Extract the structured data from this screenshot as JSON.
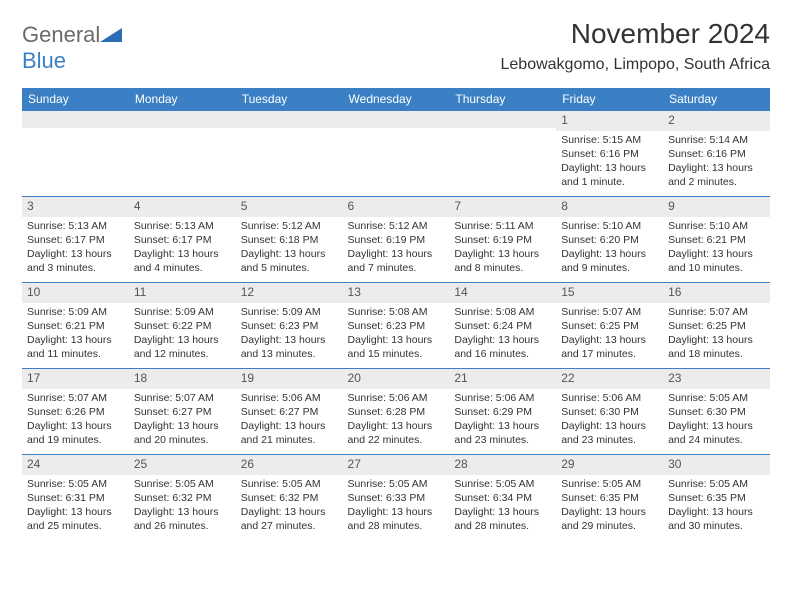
{
  "logo": {
    "general": "General",
    "blue": "Blue"
  },
  "title": "November 2024",
  "location": "Lebowakgomo, Limpopo, South Africa",
  "colors": {
    "header_bg": "#3b7fc4",
    "header_fg": "#ffffff",
    "daynum_bg": "#ececec",
    "text": "#333333"
  },
  "weekdays": [
    "Sunday",
    "Monday",
    "Tuesday",
    "Wednesday",
    "Thursday",
    "Friday",
    "Saturday"
  ],
  "weeks": [
    [
      {
        "n": "",
        "sr": "",
        "ss": "",
        "dl": ""
      },
      {
        "n": "",
        "sr": "",
        "ss": "",
        "dl": ""
      },
      {
        "n": "",
        "sr": "",
        "ss": "",
        "dl": ""
      },
      {
        "n": "",
        "sr": "",
        "ss": "",
        "dl": ""
      },
      {
        "n": "",
        "sr": "",
        "ss": "",
        "dl": ""
      },
      {
        "n": "1",
        "sr": "Sunrise: 5:15 AM",
        "ss": "Sunset: 6:16 PM",
        "dl": "Daylight: 13 hours and 1 minute."
      },
      {
        "n": "2",
        "sr": "Sunrise: 5:14 AM",
        "ss": "Sunset: 6:16 PM",
        "dl": "Daylight: 13 hours and 2 minutes."
      }
    ],
    [
      {
        "n": "3",
        "sr": "Sunrise: 5:13 AM",
        "ss": "Sunset: 6:17 PM",
        "dl": "Daylight: 13 hours and 3 minutes."
      },
      {
        "n": "4",
        "sr": "Sunrise: 5:13 AM",
        "ss": "Sunset: 6:17 PM",
        "dl": "Daylight: 13 hours and 4 minutes."
      },
      {
        "n": "5",
        "sr": "Sunrise: 5:12 AM",
        "ss": "Sunset: 6:18 PM",
        "dl": "Daylight: 13 hours and 5 minutes."
      },
      {
        "n": "6",
        "sr": "Sunrise: 5:12 AM",
        "ss": "Sunset: 6:19 PM",
        "dl": "Daylight: 13 hours and 7 minutes."
      },
      {
        "n": "7",
        "sr": "Sunrise: 5:11 AM",
        "ss": "Sunset: 6:19 PM",
        "dl": "Daylight: 13 hours and 8 minutes."
      },
      {
        "n": "8",
        "sr": "Sunrise: 5:10 AM",
        "ss": "Sunset: 6:20 PM",
        "dl": "Daylight: 13 hours and 9 minutes."
      },
      {
        "n": "9",
        "sr": "Sunrise: 5:10 AM",
        "ss": "Sunset: 6:21 PM",
        "dl": "Daylight: 13 hours and 10 minutes."
      }
    ],
    [
      {
        "n": "10",
        "sr": "Sunrise: 5:09 AM",
        "ss": "Sunset: 6:21 PM",
        "dl": "Daylight: 13 hours and 11 minutes."
      },
      {
        "n": "11",
        "sr": "Sunrise: 5:09 AM",
        "ss": "Sunset: 6:22 PM",
        "dl": "Daylight: 13 hours and 12 minutes."
      },
      {
        "n": "12",
        "sr": "Sunrise: 5:09 AM",
        "ss": "Sunset: 6:23 PM",
        "dl": "Daylight: 13 hours and 13 minutes."
      },
      {
        "n": "13",
        "sr": "Sunrise: 5:08 AM",
        "ss": "Sunset: 6:23 PM",
        "dl": "Daylight: 13 hours and 15 minutes."
      },
      {
        "n": "14",
        "sr": "Sunrise: 5:08 AM",
        "ss": "Sunset: 6:24 PM",
        "dl": "Daylight: 13 hours and 16 minutes."
      },
      {
        "n": "15",
        "sr": "Sunrise: 5:07 AM",
        "ss": "Sunset: 6:25 PM",
        "dl": "Daylight: 13 hours and 17 minutes."
      },
      {
        "n": "16",
        "sr": "Sunrise: 5:07 AM",
        "ss": "Sunset: 6:25 PM",
        "dl": "Daylight: 13 hours and 18 minutes."
      }
    ],
    [
      {
        "n": "17",
        "sr": "Sunrise: 5:07 AM",
        "ss": "Sunset: 6:26 PM",
        "dl": "Daylight: 13 hours and 19 minutes."
      },
      {
        "n": "18",
        "sr": "Sunrise: 5:07 AM",
        "ss": "Sunset: 6:27 PM",
        "dl": "Daylight: 13 hours and 20 minutes."
      },
      {
        "n": "19",
        "sr": "Sunrise: 5:06 AM",
        "ss": "Sunset: 6:27 PM",
        "dl": "Daylight: 13 hours and 21 minutes."
      },
      {
        "n": "20",
        "sr": "Sunrise: 5:06 AM",
        "ss": "Sunset: 6:28 PM",
        "dl": "Daylight: 13 hours and 22 minutes."
      },
      {
        "n": "21",
        "sr": "Sunrise: 5:06 AM",
        "ss": "Sunset: 6:29 PM",
        "dl": "Daylight: 13 hours and 23 minutes."
      },
      {
        "n": "22",
        "sr": "Sunrise: 5:06 AM",
        "ss": "Sunset: 6:30 PM",
        "dl": "Daylight: 13 hours and 23 minutes."
      },
      {
        "n": "23",
        "sr": "Sunrise: 5:05 AM",
        "ss": "Sunset: 6:30 PM",
        "dl": "Daylight: 13 hours and 24 minutes."
      }
    ],
    [
      {
        "n": "24",
        "sr": "Sunrise: 5:05 AM",
        "ss": "Sunset: 6:31 PM",
        "dl": "Daylight: 13 hours and 25 minutes."
      },
      {
        "n": "25",
        "sr": "Sunrise: 5:05 AM",
        "ss": "Sunset: 6:32 PM",
        "dl": "Daylight: 13 hours and 26 minutes."
      },
      {
        "n": "26",
        "sr": "Sunrise: 5:05 AM",
        "ss": "Sunset: 6:32 PM",
        "dl": "Daylight: 13 hours and 27 minutes."
      },
      {
        "n": "27",
        "sr": "Sunrise: 5:05 AM",
        "ss": "Sunset: 6:33 PM",
        "dl": "Daylight: 13 hours and 28 minutes."
      },
      {
        "n": "28",
        "sr": "Sunrise: 5:05 AM",
        "ss": "Sunset: 6:34 PM",
        "dl": "Daylight: 13 hours and 28 minutes."
      },
      {
        "n": "29",
        "sr": "Sunrise: 5:05 AM",
        "ss": "Sunset: 6:35 PM",
        "dl": "Daylight: 13 hours and 29 minutes."
      },
      {
        "n": "30",
        "sr": "Sunrise: 5:05 AM",
        "ss": "Sunset: 6:35 PM",
        "dl": "Daylight: 13 hours and 30 minutes."
      }
    ]
  ]
}
